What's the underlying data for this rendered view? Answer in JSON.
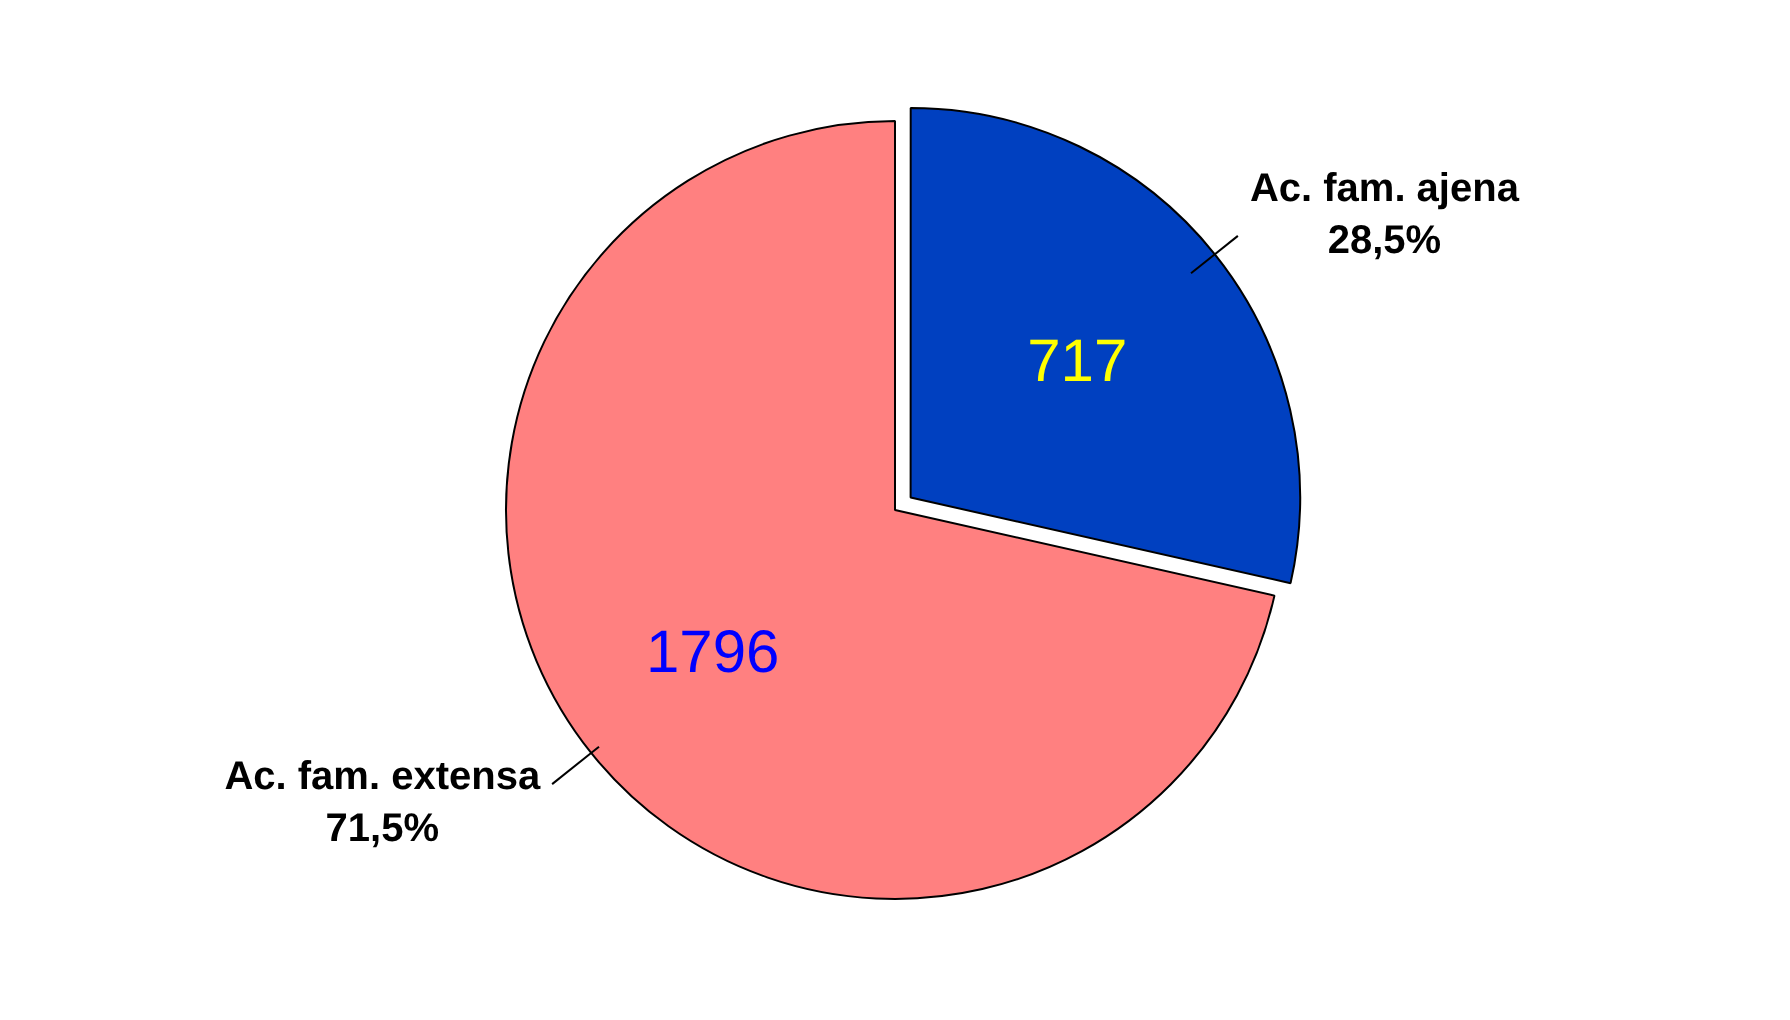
{
  "chart_data": {
    "type": "pie",
    "categories": [
      "Ac. fam. ajena",
      "Ac. fam. extensa"
    ],
    "values": [
      717,
      1796
    ],
    "colors": [
      "#0040c0",
      "#ff8080"
    ],
    "data_labels": true,
    "annotations": [
      "28,5%",
      "71,5%"
    ]
  }
}
